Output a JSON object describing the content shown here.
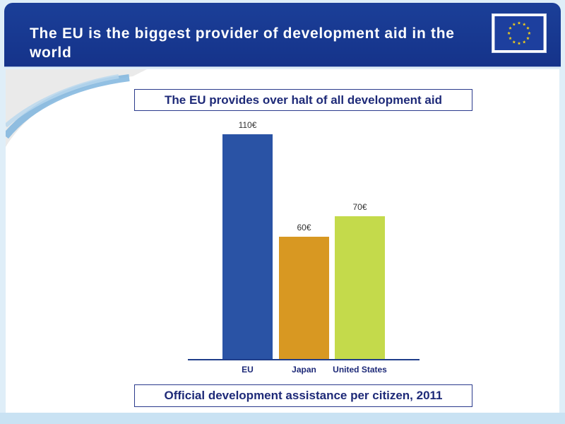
{
  "header": {
    "title": "The EU is the biggest provider of development aid in the world",
    "flag_icon": "eu-flag-icon"
  },
  "subtitle": "The EU provides over halt of all development aid",
  "footer": "Official development assistance per citizen, 2011",
  "colors": {
    "header_bg": "#1b3f98",
    "eu_blue": "#2a53a5",
    "japan_orange": "#d89822",
    "us_green": "#c4da4b",
    "axis_blue": "#1f3d8a"
  },
  "chart_data": {
    "type": "bar",
    "title": "The EU provides over halt of all development aid",
    "xlabel": "",
    "ylabel": "",
    "categories": [
      "EU",
      "Japan",
      "United States"
    ],
    "values": [
      110,
      60,
      70
    ],
    "value_labels": [
      "110€",
      "60€",
      "70€"
    ],
    "unit": "€",
    "colors": [
      "#2a53a5",
      "#d89822",
      "#c4da4b"
    ],
    "ylim": [
      0,
      110
    ],
    "grid": false,
    "legend": "none"
  }
}
